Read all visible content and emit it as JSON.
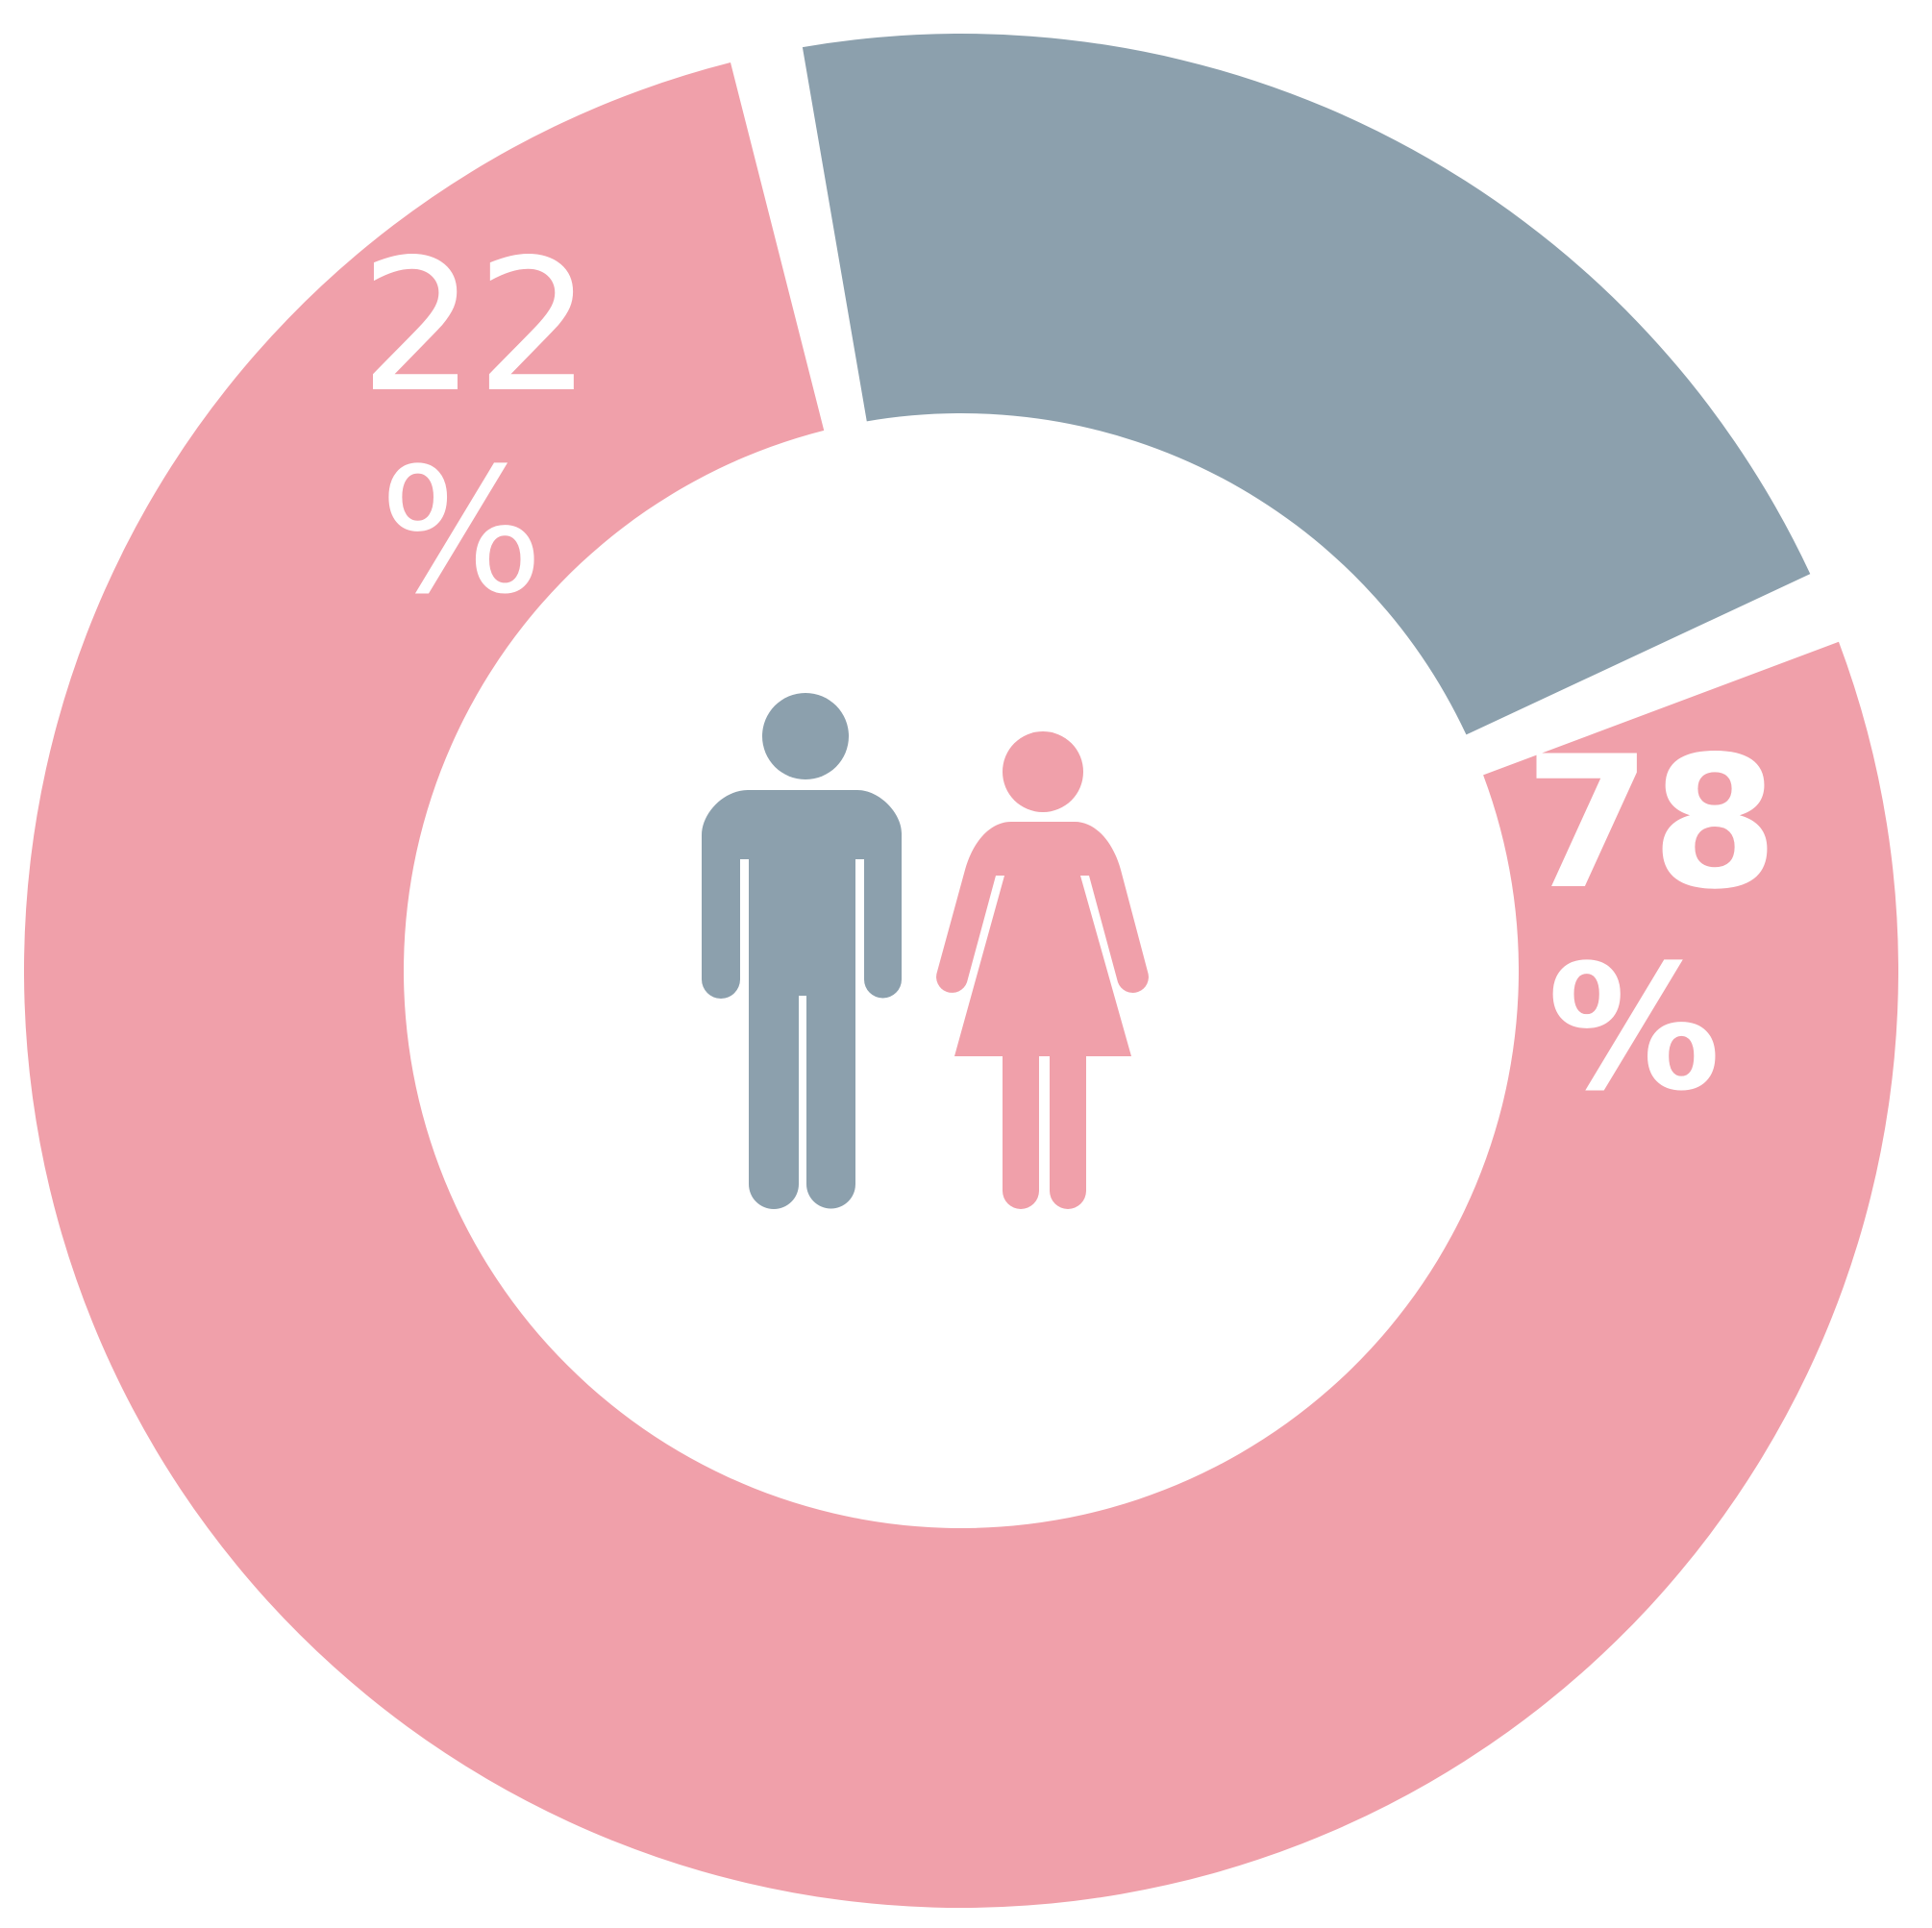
{
  "chart_data": {
    "type": "pie",
    "donut": true,
    "title": "",
    "slices": [
      {
        "value": 22,
        "value_label": "22",
        "unit_label": "%",
        "color": "#8ca0ad",
        "icon": "male-figure-icon"
      },
      {
        "value": 78,
        "value_label": "78",
        "unit_label": "%",
        "color": "#f0a0aa",
        "icon": "female-figure-icon"
      }
    ],
    "legend": "none",
    "background": "#ffffff"
  }
}
